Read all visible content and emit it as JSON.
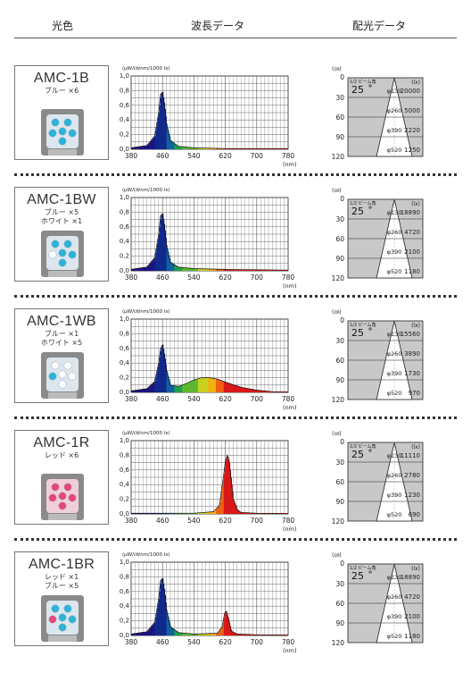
{
  "header": {
    "col1": "光色",
    "col2": "波長データ",
    "col3": "配光データ"
  },
  "chart_axes": {
    "y_unit": "(μW/㎝/nm/1000 lx)",
    "y_ticks": [
      "1,0",
      "0,8",
      "0,6",
      "0,4",
      "0,2",
      "0,0"
    ],
    "x_ticks": [
      "380",
      "460",
      "540",
      "620",
      "700",
      "780"
    ],
    "x_unit": "(nm)"
  },
  "light_axes": {
    "dist_unit": "(㎝)",
    "dist_ticks": [
      "0",
      "30",
      "60",
      "90",
      "120"
    ],
    "half_angle_label": "1/2 ビーム角",
    "lux_unit": "(lx)",
    "angle": "25",
    "diameters": [
      "φ130",
      "φ260",
      "φ390",
      "φ520"
    ]
  },
  "chart_data": [
    {
      "type": "line",
      "model": "AMC-1B",
      "x": [
        380,
        420,
        440,
        450,
        455,
        460,
        465,
        470,
        480,
        500,
        540,
        620,
        780
      ],
      "values": [
        0.02,
        0.05,
        0.18,
        0.5,
        0.75,
        0.78,
        0.6,
        0.35,
        0.12,
        0.04,
        0.02,
        0.01,
        0.01
      ],
      "ylim": [
        0,
        1.0
      ],
      "xlim": [
        380,
        780
      ]
    },
    {
      "type": "line",
      "model": "AMC-1BW",
      "x": [
        380,
        420,
        440,
        450,
        455,
        460,
        465,
        470,
        480,
        500,
        540,
        620,
        780
      ],
      "values": [
        0.02,
        0.05,
        0.18,
        0.5,
        0.75,
        0.78,
        0.6,
        0.35,
        0.12,
        0.05,
        0.03,
        0.02,
        0.01
      ],
      "ylim": [
        0,
        1.0
      ],
      "xlim": [
        380,
        780
      ]
    },
    {
      "type": "line",
      "model": "AMC-1WB",
      "x": [
        380,
        420,
        440,
        450,
        455,
        460,
        465,
        470,
        480,
        500,
        520,
        540,
        560,
        580,
        600,
        620,
        660,
        700,
        740,
        780
      ],
      "values": [
        0.02,
        0.05,
        0.15,
        0.4,
        0.6,
        0.65,
        0.5,
        0.3,
        0.1,
        0.08,
        0.12,
        0.17,
        0.2,
        0.2,
        0.18,
        0.14,
        0.07,
        0.03,
        0.01,
        0.0
      ],
      "ylim": [
        0,
        1.0
      ],
      "xlim": [
        380,
        780
      ]
    },
    {
      "type": "line",
      "model": "AMC-1R",
      "x": [
        380,
        460,
        540,
        590,
        605,
        615,
        620,
        625,
        630,
        635,
        640,
        650,
        660,
        700,
        780
      ],
      "values": [
        0.01,
        0.01,
        0.01,
        0.03,
        0.12,
        0.5,
        0.72,
        0.8,
        0.7,
        0.45,
        0.2,
        0.06,
        0.02,
        0.01,
        0.0
      ],
      "ylim": [
        0,
        1.0
      ],
      "xlim": [
        380,
        780
      ]
    },
    {
      "type": "line",
      "model": "AMC-1BR",
      "x": [
        380,
        420,
        440,
        450,
        455,
        460,
        465,
        470,
        480,
        500,
        540,
        600,
        612,
        618,
        622,
        628,
        635,
        650,
        700,
        780
      ],
      "values": [
        0.02,
        0.05,
        0.18,
        0.5,
        0.75,
        0.78,
        0.6,
        0.35,
        0.12,
        0.04,
        0.02,
        0.03,
        0.12,
        0.3,
        0.33,
        0.22,
        0.06,
        0.02,
        0.01,
        0.0
      ],
      "ylim": [
        0,
        1.0
      ],
      "xlim": [
        380,
        780
      ]
    }
  ],
  "products": [
    {
      "model": "AMC-1B",
      "desc": [
        "ブルー ×6"
      ],
      "lux": [
        "20000",
        "5000",
        "2220",
        "1250"
      ],
      "led": "#29b2d8",
      "mix": [
        "b",
        "b",
        "b",
        "b",
        "b",
        "b"
      ]
    },
    {
      "model": "AMC-1BW",
      "desc": [
        "ブルー ×5",
        "ホワイト ×1"
      ],
      "lux": [
        "18890",
        "4720",
        "2100",
        "1180"
      ],
      "led": "#29b2d8",
      "mix": [
        "b",
        "b",
        "w",
        "b",
        "b",
        "b"
      ]
    },
    {
      "model": "AMC-1WB",
      "desc": [
        "ブルー ×1",
        "ホワイト ×5"
      ],
      "lux": [
        "15560",
        "3890",
        "1730",
        "970"
      ],
      "led": "#29b2d8",
      "mix": [
        "w",
        "w",
        "b",
        "w",
        "w",
        "w"
      ]
    },
    {
      "model": "AMC-1R",
      "desc": [
        "レッド ×6"
      ],
      "lux": [
        "11110",
        "2780",
        "1230",
        "690"
      ],
      "led": "#e8457a",
      "mix": [
        "r",
        "r",
        "r",
        "r",
        "r",
        "r"
      ]
    },
    {
      "model": "AMC-1BR",
      "desc": [
        "レッド ×1",
        "ブルー ×5"
      ],
      "lux": [
        "18890",
        "4720",
        "2100",
        "1180"
      ],
      "led": "#29b2d8",
      "mix": [
        "b",
        "b",
        "r",
        "b",
        "b",
        "b"
      ]
    }
  ]
}
